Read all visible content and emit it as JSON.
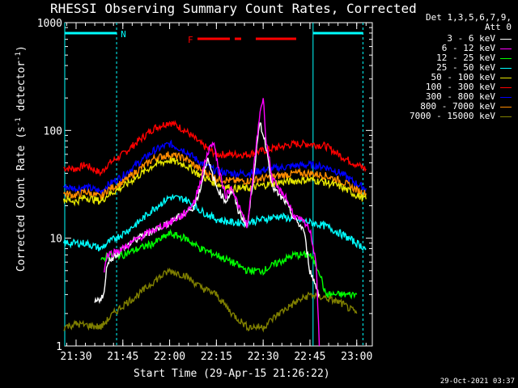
{
  "chart_data": {
    "type": "line",
    "title": "RHESSI Observing Summary Count Rates, Corrected",
    "xlabel": "Start Time (29-Apr-15 21:26:22)",
    "ylabel": "Corrected Count Rate (s-1 detector-1)",
    "yscale": "log",
    "ylim": [
      1,
      1000
    ],
    "xlim_minutes": [
      21.43,
      23.08
    ],
    "x_ticks": [
      "21:30",
      "21:45",
      "22:00",
      "22:15",
      "22:30",
      "22:45",
      "23:00"
    ],
    "y_ticks": [
      "1",
      "10",
      "100",
      "1000"
    ],
    "timestamp": "29-Oct-2021 03:37",
    "legend": {
      "header": [
        "Det 1,3,5,6,7,9,",
        "Att 0"
      ],
      "placement": "right",
      "entries": [
        {
          "label": "3 - 6 keV",
          "color": "#ffffff"
        },
        {
          "label": "6 - 12 keV",
          "color": "#ff00ff"
        },
        {
          "label": "12 - 25 keV",
          "color": "#00ff00"
        },
        {
          "label": "25 - 50 keV",
          "color": "#00ffff"
        },
        {
          "label": "50 - 100 keV",
          "color": "#e6e600"
        },
        {
          "label": "100 - 300 keV",
          "color": "#ff0000"
        },
        {
          "label": "300 - 800 keV",
          "color": "#0000ff"
        },
        {
          "label": "800 - 7000 keV",
          "color": "#ff8c00"
        },
        {
          "label": "7000 - 15000 keV",
          "color": "#808000"
        }
      ]
    },
    "annotations": {
      "night_marker": "N",
      "flare_marker": "F"
    },
    "series": [
      {
        "name": "100 - 300 keV",
        "color": "#ff0000",
        "x": [
          "21:26",
          "21:30",
          "21:33",
          "21:38",
          "21:40",
          "21:45",
          "21:50",
          "21:55",
          "22:00",
          "22:05",
          "22:10",
          "22:15",
          "22:20",
          "22:25",
          "22:30",
          "22:35",
          "22:40",
          "22:45",
          "22:50",
          "22:55",
          "23:00",
          "23:03"
        ],
        "y": [
          45,
          44,
          48,
          40,
          48,
          60,
          80,
          105,
          120,
          100,
          75,
          60,
          60,
          60,
          65,
          70,
          75,
          75,
          72,
          58,
          48,
          44
        ]
      },
      {
        "name": "300 - 800 keV",
        "color": "#0000ff",
        "x": [
          "21:26",
          "21:30",
          "21:33",
          "21:38",
          "21:40",
          "21:45",
          "21:50",
          "21:55",
          "22:00",
          "22:05",
          "22:10",
          "22:15",
          "22:20",
          "22:25",
          "22:30",
          "22:35",
          "22:40",
          "22:45",
          "22:50",
          "22:55",
          "23:00",
          "23:03"
        ],
        "y": [
          30,
          29,
          30,
          27,
          31,
          38,
          50,
          65,
          75,
          65,
          50,
          42,
          40,
          40,
          43,
          45,
          47,
          48,
          46,
          40,
          32,
          29
        ]
      },
      {
        "name": "800 - 7000 keV",
        "color": "#ff8c00",
        "x": [
          "21:26",
          "21:30",
          "21:33",
          "21:38",
          "21:40",
          "21:45",
          "21:50",
          "21:55",
          "22:00",
          "22:05",
          "22:10",
          "22:15",
          "22:20",
          "22:25",
          "22:30",
          "22:35",
          "22:40",
          "22:45",
          "22:50",
          "22:55",
          "23:00",
          "23:03"
        ],
        "y": [
          26,
          25,
          27,
          24,
          28,
          33,
          43,
          55,
          60,
          55,
          43,
          36,
          34,
          34,
          36,
          38,
          40,
          40,
          38,
          34,
          28,
          26
        ]
      },
      {
        "name": "50 - 100 keV",
        "color": "#e6e600",
        "x": [
          "21:26",
          "21:30",
          "21:33",
          "21:38",
          "21:40",
          "21:45",
          "21:50",
          "21:55",
          "22:00",
          "22:05",
          "22:10",
          "22:15",
          "22:20",
          "22:25",
          "22:30",
          "22:35",
          "22:40",
          "22:45",
          "22:50",
          "22:55",
          "23:00",
          "23:03"
        ],
        "y": [
          23,
          22,
          24,
          22,
          25,
          30,
          38,
          48,
          53,
          48,
          38,
          32,
          29,
          29,
          31,
          33,
          34,
          35,
          33,
          30,
          25,
          23
        ]
      },
      {
        "name": "25 - 50 keV",
        "color": "#00ffff",
        "x": [
          "21:26",
          "21:30",
          "21:33",
          "21:38",
          "21:40",
          "21:45",
          "21:50",
          "21:55",
          "22:00",
          "22:05",
          "22:10",
          "22:15",
          "22:20",
          "22:25",
          "22:30",
          "22:35",
          "22:40",
          "22:45",
          "22:50",
          "22:55",
          "23:00",
          "23:03"
        ],
        "y": [
          9,
          9,
          9,
          8,
          9,
          11,
          14,
          19,
          24,
          23,
          18,
          15,
          14,
          14,
          15,
          16,
          15,
          14,
          13,
          11,
          9,
          8
        ]
      },
      {
        "name": "12 - 25 keV",
        "color": "#00ff00",
        "x": [
          "21:38",
          "21:40",
          "21:45",
          "21:50",
          "21:55",
          "22:00",
          "22:05",
          "22:10",
          "22:15",
          "22:20",
          "22:25",
          "22:30",
          "22:35",
          "22:40",
          "22:45",
          "22:48",
          "22:50",
          "22:55",
          "23:00"
        ],
        "y": [
          6,
          7,
          7,
          8,
          9,
          11,
          10,
          8,
          7,
          6,
          5,
          5,
          6,
          7,
          7,
          5,
          3,
          3,
          3
        ]
      },
      {
        "name": "7000 - 15000 keV",
        "color": "#808000",
        "x": [
          "21:26",
          "21:30",
          "21:38",
          "21:42",
          "21:46",
          "21:50",
          "21:55",
          "22:00",
          "22:05",
          "22:10",
          "22:15",
          "22:20",
          "22:25",
          "22:30",
          "22:35",
          "22:40",
          "22:45",
          "22:50",
          "22:55",
          "23:00"
        ],
        "y": [
          1.5,
          1.6,
          1.5,
          2,
          2.5,
          3,
          4,
          5,
          4.5,
          3.5,
          3,
          2,
          1.5,
          1.5,
          2,
          2.5,
          3,
          2.8,
          2.5,
          2
        ]
      },
      {
        "name": "3 - 6 keV",
        "color": "#ffffff",
        "x": [
          "21:36",
          "21:39",
          "21:40",
          "21:45",
          "21:50",
          "21:55",
          "22:00",
          "22:05",
          "22:08",
          "22:10",
          "22:12",
          "22:15",
          "22:18",
          "22:20",
          "22:22",
          "22:25",
          "22:27",
          "22:29",
          "22:31",
          "22:33",
          "22:35",
          "22:37",
          "22:40",
          "22:43",
          "22:45",
          "22:48"
        ],
        "y": [
          2.5,
          3,
          6,
          8,
          10,
          12,
          14,
          17,
          20,
          30,
          55,
          30,
          22,
          28,
          18,
          13,
          40,
          120,
          70,
          30,
          25,
          22,
          15,
          12,
          5,
          3
        ]
      },
      {
        "name": "6 - 12 keV",
        "color": "#ff00ff",
        "x": [
          "21:39",
          "21:40",
          "21:45",
          "21:50",
          "21:55",
          "22:00",
          "22:05",
          "22:08",
          "22:10",
          "22:12",
          "22:14",
          "22:16",
          "22:18",
          "22:20",
          "22:22",
          "22:25",
          "22:27",
          "22:29",
          "22:30",
          "22:31",
          "22:33",
          "22:35",
          "22:37",
          "22:40",
          "22:43",
          "22:45",
          "22:47",
          "22:48"
        ],
        "y": [
          5,
          7,
          8,
          10,
          12,
          14,
          17,
          22,
          35,
          60,
          80,
          40,
          25,
          30,
          20,
          13,
          45,
          150,
          200,
          80,
          35,
          28,
          25,
          16,
          14,
          12,
          6,
          1
        ]
      }
    ]
  }
}
